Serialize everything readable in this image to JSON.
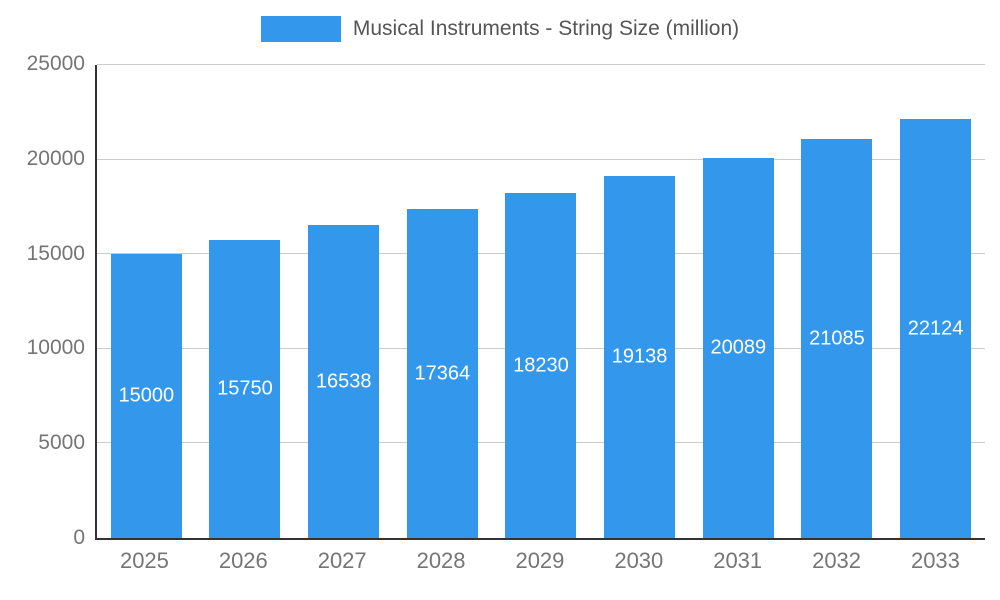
{
  "chart_data": {
    "type": "bar",
    "title": "Musical Instruments - String Size (million)",
    "categories": [
      "2025",
      "2026",
      "2027",
      "2028",
      "2029",
      "2030",
      "2031",
      "2032",
      "2033"
    ],
    "values": [
      15000,
      15750,
      16538,
      17364,
      18230,
      19138,
      20089,
      21085,
      22124
    ],
    "xlabel": "",
    "ylabel": "",
    "ylim": [
      0,
      25000
    ],
    "yticks": [
      0,
      5000,
      10000,
      15000,
      20000,
      25000
    ],
    "grid": "horizontal",
    "legend_position": "top-center",
    "bar_color": "#3398EC",
    "value_label_color": "#ffffff"
  }
}
